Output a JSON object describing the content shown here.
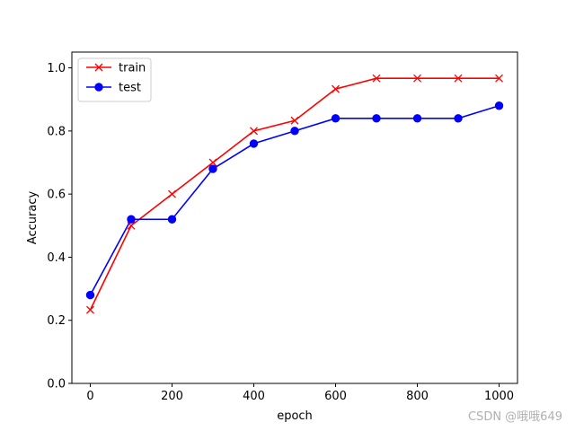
{
  "chart_data": {
    "type": "line",
    "title": "",
    "xlabel": "epoch",
    "ylabel": "Accuracy",
    "xlim": [
      -45,
      1045
    ],
    "ylim": [
      0.0,
      1.05
    ],
    "xticks": [
      0,
      200,
      400,
      600,
      800,
      1000
    ],
    "yticks": [
      0.0,
      0.2,
      0.4,
      0.6,
      0.8,
      1.0
    ],
    "xtick_labels": [
      "0",
      "200",
      "400",
      "600",
      "800",
      "1000"
    ],
    "ytick_labels": [
      "0.0",
      "0.2",
      "0.4",
      "0.6",
      "0.8",
      "1.0"
    ],
    "grid": false,
    "legend": "upper-left",
    "x": [
      0,
      100,
      200,
      300,
      400,
      500,
      600,
      700,
      800,
      900,
      1000
    ],
    "series": [
      {
        "name": "train",
        "color": "#ff0000",
        "marker": "x",
        "values": [
          0.233,
          0.5,
          0.6,
          0.7,
          0.8,
          0.833,
          0.933,
          0.967,
          0.967,
          0.967,
          0.967
        ]
      },
      {
        "name": "test",
        "color": "#0000ff",
        "marker": "o",
        "values": [
          0.28,
          0.52,
          0.52,
          0.68,
          0.76,
          0.8,
          0.84,
          0.84,
          0.84,
          0.84,
          0.88
        ]
      }
    ]
  },
  "watermark": "CSDN @哦哦649"
}
